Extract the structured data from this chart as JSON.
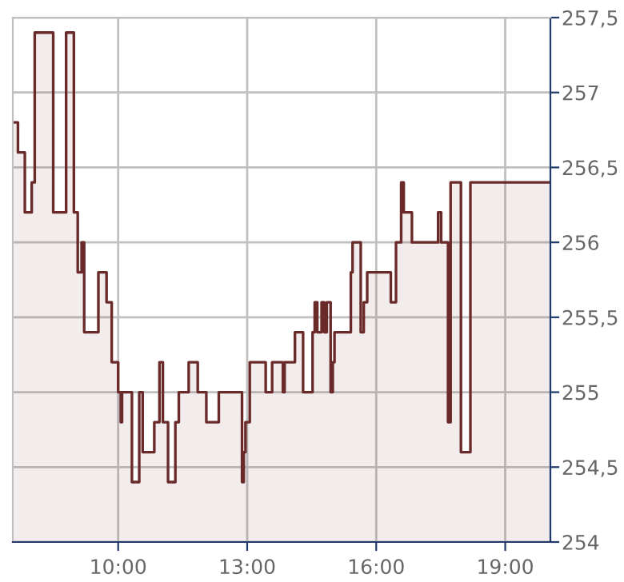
{
  "chart_data": {
    "type": "area",
    "x": [
      7.58,
      7.67,
      7.67,
      7.83,
      7.83,
      7.99,
      7.99,
      8.06,
      8.06,
      8.49,
      8.49,
      8.79,
      8.79,
      8.97,
      8.97,
      9.06,
      9.06,
      9.15,
      9.15,
      9.21,
      9.21,
      9.54,
      9.54,
      9.73,
      9.73,
      9.85,
      9.85,
      10.0,
      10.0,
      10.06,
      10.06,
      10.09,
      10.09,
      10.32,
      10.32,
      10.49,
      10.49,
      10.57,
      10.57,
      10.84,
      10.84,
      10.96,
      10.96,
      11.04,
      11.04,
      11.16,
      11.16,
      11.33,
      11.33,
      11.41,
      11.41,
      11.64,
      11.64,
      11.85,
      11.85,
      12.05,
      12.05,
      12.34,
      12.34,
      12.88,
      12.88,
      12.92,
      12.92,
      12.96,
      12.96,
      13.06,
      13.06,
      13.43,
      13.43,
      13.58,
      13.58,
      13.83,
      13.83,
      13.87,
      13.87,
      14.11,
      14.11,
      14.3,
      14.3,
      14.52,
      14.52,
      14.57,
      14.57,
      14.63,
      14.63,
      14.73,
      14.73,
      14.79,
      14.79,
      14.85,
      14.85,
      14.94,
      14.94,
      14.99,
      14.99,
      15.03,
      15.03,
      15.41,
      15.41,
      15.45,
      15.45,
      15.64,
      15.64,
      15.71,
      15.71,
      15.79,
      15.79,
      16.34,
      16.34,
      16.46,
      16.46,
      16.58,
      16.58,
      16.64,
      16.64,
      16.83,
      16.83,
      17.44,
      17.44,
      17.51,
      17.51,
      17.67,
      17.67,
      17.73,
      17.73,
      17.97,
      17.97,
      18.19,
      18.19,
      20.05
    ],
    "series": [
      {
        "color": "#6b2a2a",
        "values": [
          256.8,
          256.8,
          256.6,
          256.6,
          256.2,
          256.2,
          256.4,
          256.4,
          257.4,
          257.4,
          256.2,
          256.2,
          257.4,
          257.4,
          256.2,
          256.2,
          255.8,
          255.8,
          256.0,
          256.0,
          255.4,
          255.4,
          255.8,
          255.8,
          255.6,
          255.6,
          255.2,
          255.2,
          255.0,
          255.0,
          254.8,
          254.8,
          255.0,
          255.0,
          254.4,
          254.4,
          255.0,
          255.0,
          254.6,
          254.6,
          254.8,
          254.8,
          255.2,
          255.2,
          254.8,
          254.8,
          254.4,
          254.4,
          254.8,
          254.8,
          255.0,
          255.0,
          255.2,
          255.2,
          255.0,
          255.0,
          254.8,
          254.8,
          255.0,
          255.0,
          254.4,
          254.4,
          254.6,
          254.6,
          254.8,
          254.8,
          255.2,
          255.2,
          255.0,
          255.0,
          255.2,
          255.2,
          255.0,
          255.0,
          255.2,
          255.2,
          255.4,
          255.4,
          255.0,
          255.0,
          255.4,
          255.4,
          255.6,
          255.6,
          255.4,
          255.4,
          255.6,
          255.6,
          255.4,
          255.4,
          255.6,
          255.6,
          255.0,
          255.0,
          255.2,
          255.2,
          255.4,
          255.4,
          255.8,
          255.8,
          256.0,
          256.0,
          255.4,
          255.4,
          255.6,
          255.6,
          255.8,
          255.8,
          255.6,
          255.6,
          256.0,
          256.0,
          256.4,
          256.4,
          256.2,
          256.2,
          256.0,
          256.0,
          256.2,
          256.2,
          256.0,
          256.0,
          254.8,
          254.8,
          256.4,
          256.4,
          254.6,
          254.6,
          256.4,
          256.4
        ]
      }
    ],
    "xlim": [
      7.55,
      20.05
    ],
    "xticks": [
      {
        "value": 10,
        "label": "10:00"
      },
      {
        "value": 13,
        "label": "13:00"
      },
      {
        "value": 16,
        "label": "16:00"
      },
      {
        "value": 19,
        "label": "19:00"
      }
    ],
    "ylim": [
      254,
      257.5
    ],
    "yticks": [
      {
        "value": 254,
        "label": "254"
      },
      {
        "value": 254.5,
        "label": "254,5"
      },
      {
        "value": 255,
        "label": "255"
      },
      {
        "value": 255.5,
        "label": "255,5"
      },
      {
        "value": 256,
        "label": "256"
      },
      {
        "value": 256.5,
        "label": "256,5"
      },
      {
        "value": 257,
        "label": "257"
      },
      {
        "value": 257.5,
        "label": "257,5"
      }
    ],
    "grid": true
  }
}
